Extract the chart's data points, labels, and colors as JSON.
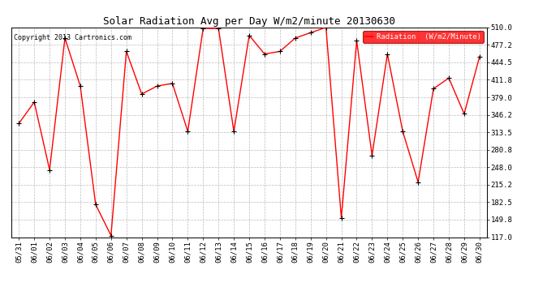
{
  "title": "Solar Radiation Avg per Day W/m2/minute 20130630",
  "copyright": "Copyright 2013 Cartronics.com",
  "legend_label": "Radiation  (W/m2/Minute)",
  "dates": [
    "05/31",
    "06/01",
    "06/02",
    "06/03",
    "06/04",
    "06/05",
    "06/06",
    "06/07",
    "06/08",
    "06/09",
    "06/10",
    "06/11",
    "06/12",
    "06/13",
    "06/14",
    "06/15",
    "06/16",
    "06/17",
    "06/18",
    "06/19",
    "06/20",
    "06/21",
    "06/22",
    "06/23",
    "06/24",
    "06/25",
    "06/26",
    "06/27",
    "06/28",
    "06/29",
    "06/30"
  ],
  "values": [
    330,
    370,
    243,
    490,
    400,
    178,
    120,
    465,
    385,
    400,
    405,
    315,
    508,
    508,
    315,
    495,
    460,
    465,
    490,
    500,
    510,
    153,
    485,
    270,
    460,
    315,
    220,
    395,
    415,
    348,
    455
  ],
  "ylim": [
    117.0,
    510.0
  ],
  "yticks": [
    117.0,
    149.8,
    182.5,
    215.2,
    248.0,
    280.8,
    313.5,
    346.2,
    379.0,
    411.8,
    444.5,
    477.2,
    510.0
  ],
  "line_color": "red",
  "marker_color": "black",
  "background_color": "#ffffff",
  "plot_bg_color": "#ffffff",
  "grid_color": "#bbbbbb",
  "legend_bg": "red",
  "legend_text_color": "white",
  "title_fontsize": 9,
  "copyright_fontsize": 6,
  "tick_fontsize": 6.5
}
